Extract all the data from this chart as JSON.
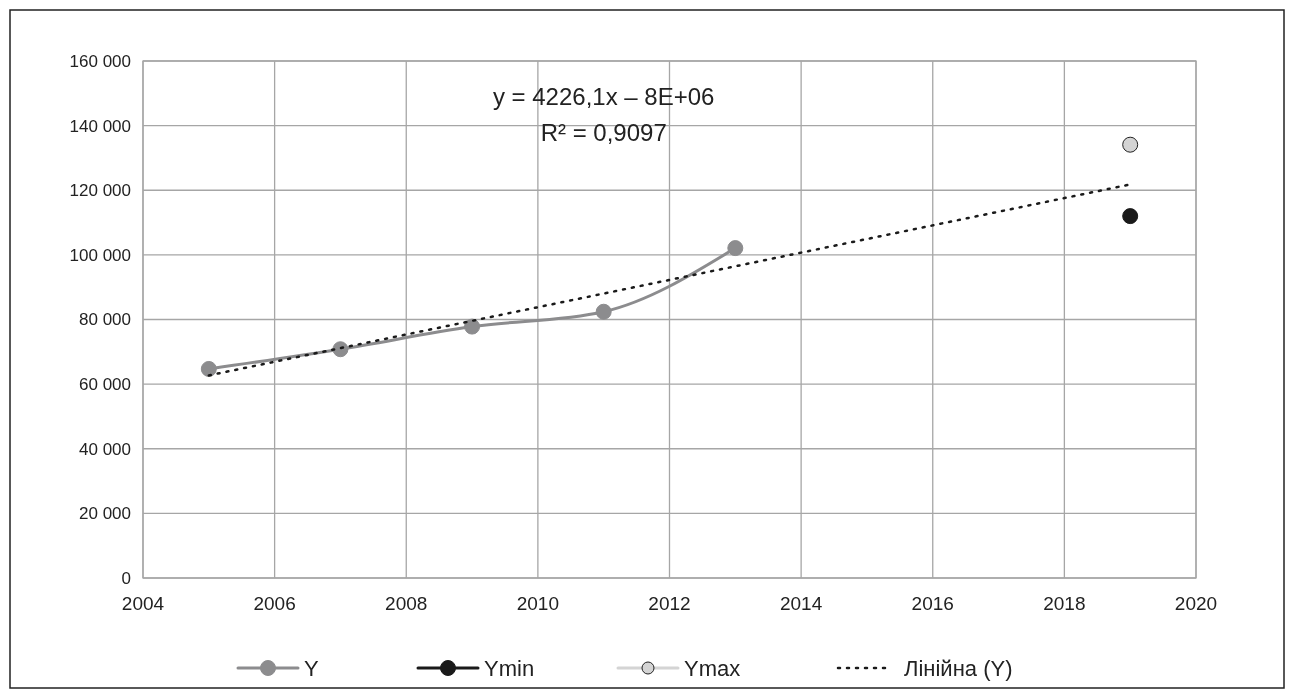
{
  "chart_data": {
    "type": "line",
    "x": [
      2005,
      2007,
      2009,
      2011,
      2013,
      2019
    ],
    "series": [
      {
        "name": "Y",
        "color": "#8c8c8e",
        "values": [
          64700,
          70800,
          77800,
          82400,
          102100,
          null
        ]
      },
      {
        "name": "Ymin",
        "color": "#1a1a1a",
        "values": [
          null,
          null,
          null,
          null,
          null,
          112000
        ]
      },
      {
        "name": "Ymax",
        "color": "#d4d4d4",
        "values": [
          null,
          null,
          null,
          null,
          null,
          134100
        ]
      },
      {
        "name": "Лінійна (Y)",
        "color": "#1a1a1a",
        "x": [
          2005,
          2019
        ],
        "values": [
          62700,
          121800
        ],
        "marker": "none",
        "line_style": "dotted"
      }
    ],
    "xlim": [
      2004,
      2020
    ],
    "xticks": [
      2004,
      2006,
      2008,
      2010,
      2012,
      2014,
      2016,
      2018,
      2020
    ],
    "ylim": [
      0,
      160000
    ],
    "yticks": [
      {
        "value": 0,
        "label": "0"
      },
      {
        "value": 20000,
        "label": "20 000"
      },
      {
        "value": 40000,
        "label": "40 000"
      },
      {
        "value": 60000,
        "label": "60 000"
      },
      {
        "value": 80000,
        "label": "80 000"
      },
      {
        "value": 100000,
        "label": "100 000"
      },
      {
        "value": 120000,
        "label": "120 000"
      },
      {
        "value": 140000,
        "label": "140 000"
      },
      {
        "value": 160000,
        "label": "160 000"
      }
    ],
    "grid": true,
    "legend": "bottom",
    "marker": "circle",
    "line_style": "solid",
    "annotations": [
      "y = 4226,1x – 8E+06",
      "R² = 0,9097"
    ]
  }
}
